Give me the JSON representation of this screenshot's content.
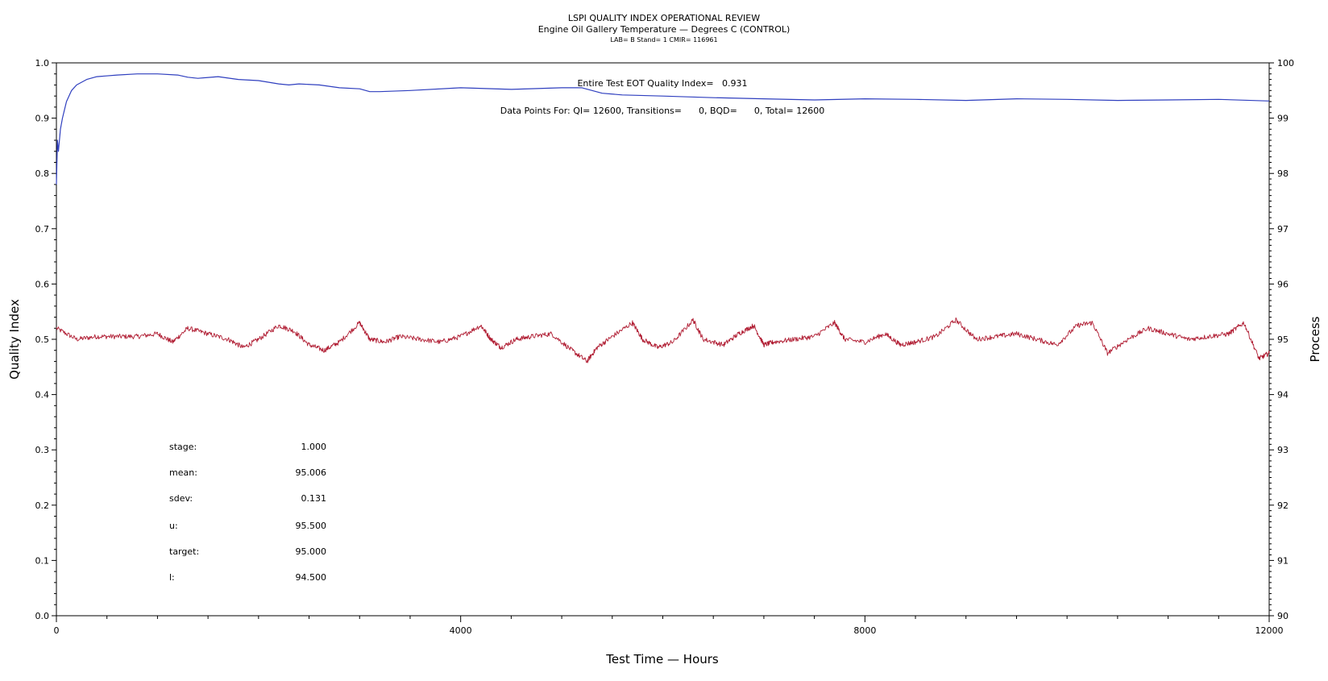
{
  "chart_data": {
    "type": "line",
    "title": "LSPI QUALITY INDEX OPERATIONAL REVIEW",
    "subtitle": "Engine Oil Gallery Temperature — Degrees C (CONTROL)",
    "subtitle2": "LAB= B Stand= 1 CMIR= 116961",
    "xlabel": "Test Time — Hours",
    "ylabel_left": "Quality Index",
    "ylabel_right": "Process",
    "xlim": [
      0,
      12000
    ],
    "ylim_left": [
      0.0,
      1.0
    ],
    "ylim_right": [
      90,
      100
    ],
    "x_ticks": [
      0,
      4000,
      8000,
      12000
    ],
    "x_tick_labels": [
      "0",
      "4000",
      "8000",
      "12000"
    ],
    "y_left_ticks": [
      0.0,
      0.1,
      0.2,
      0.3,
      0.4,
      0.5,
      0.6,
      0.7,
      0.8,
      0.9,
      1.0
    ],
    "y_left_tick_labels": [
      "0.0",
      "0.1",
      "0.2",
      "0.3",
      "0.4",
      "0.5",
      "0.6",
      "0.7",
      "0.8",
      "0.9",
      "1.0"
    ],
    "y_right_ticks": [
      90,
      91,
      92,
      93,
      94,
      95,
      96,
      97,
      98,
      99,
      100
    ],
    "y_right_tick_labels": [
      "90",
      "91",
      "92",
      "93",
      "94",
      "95",
      "96",
      "97",
      "98",
      "99",
      "100"
    ],
    "grid": false,
    "annotations": {
      "qi_line": "Entire Test EOT Quality Index=   0.931",
      "points_line": "Data Points For: QI= 12600, Transitions=      0, BQD=      0, Total= 12600"
    },
    "stats": [
      {
        "label": "stage:",
        "value": "1.000"
      },
      {
        "label": "mean:",
        "value": "95.006"
      },
      {
        "label": "sdev:",
        "value": "0.131"
      },
      {
        "label": "u:",
        "value": "95.500"
      },
      {
        "label": "target:",
        "value": "95.000"
      },
      {
        "label": "l:",
        "value": "94.500"
      }
    ],
    "series": [
      {
        "axis": "left",
        "color": "#2f3fbf",
        "x": [
          0,
          10,
          20,
          40,
          60,
          100,
          150,
          200,
          300,
          400,
          600,
          800,
          1000,
          1200,
          1300,
          1400,
          1600,
          1800,
          2000,
          2200,
          2300,
          2400,
          2600,
          2800,
          3000,
          3100,
          3200,
          3500,
          4000,
          4500,
          5000,
          5200,
          5400,
          5600,
          6000,
          6500,
          7000,
          7500,
          8000,
          8500,
          9000,
          9500,
          10000,
          10500,
          11000,
          11500,
          12000
        ],
        "values": [
          0.78,
          0.86,
          0.84,
          0.88,
          0.9,
          0.93,
          0.95,
          0.96,
          0.97,
          0.975,
          0.978,
          0.98,
          0.98,
          0.978,
          0.974,
          0.972,
          0.975,
          0.97,
          0.968,
          0.962,
          0.96,
          0.962,
          0.96,
          0.955,
          0.953,
          0.948,
          0.948,
          0.95,
          0.955,
          0.952,
          0.955,
          0.955,
          0.945,
          0.942,
          0.94,
          0.937,
          0.935,
          0.933,
          0.935,
          0.934,
          0.932,
          0.935,
          0.934,
          0.932,
          0.933,
          0.934,
          0.931
        ]
      },
      {
        "axis": "right",
        "color": "#b01c32",
        "x": [
          0,
          200,
          400,
          600,
          800,
          1000,
          1150,
          1300,
          1500,
          1700,
          1850,
          2000,
          2200,
          2350,
          2500,
          2650,
          2800,
          3000,
          3100,
          3250,
          3400,
          3600,
          3800,
          4000,
          4200,
          4300,
          4400,
          4550,
          4700,
          4900,
          5100,
          5250,
          5350,
          5500,
          5700,
          5800,
          5950,
          6100,
          6300,
          6400,
          6600,
          6750,
          6900,
          7000,
          7100,
          7300,
          7500,
          7700,
          7800,
          8000,
          8200,
          8350,
          8500,
          8700,
          8900,
          9100,
          9300,
          9500,
          9700,
          9900,
          10100,
          10250,
          10400,
          10600,
          10800,
          11000,
          11200,
          11400,
          11600,
          11750,
          11900,
          12000
        ],
        "values": [
          95.2,
          95.0,
          95.05,
          95.05,
          95.05,
          95.1,
          94.95,
          95.2,
          95.1,
          95.0,
          94.85,
          95.0,
          95.25,
          95.15,
          94.9,
          94.8,
          94.95,
          95.3,
          95.0,
          94.95,
          95.05,
          95.0,
          94.95,
          95.05,
          95.25,
          95.0,
          94.85,
          95.0,
          95.05,
          95.1,
          94.8,
          94.6,
          94.85,
          95.05,
          95.3,
          95.0,
          94.85,
          94.95,
          95.35,
          95.0,
          94.9,
          95.1,
          95.25,
          94.9,
          94.95,
          95.0,
          95.05,
          95.3,
          95.0,
          94.95,
          95.1,
          94.9,
          94.95,
          95.05,
          95.35,
          95.0,
          95.05,
          95.1,
          95.0,
          94.9,
          95.25,
          95.3,
          94.75,
          95.0,
          95.2,
          95.1,
          95.0,
          95.05,
          95.1,
          95.3,
          94.65,
          94.75
        ]
      }
    ]
  }
}
